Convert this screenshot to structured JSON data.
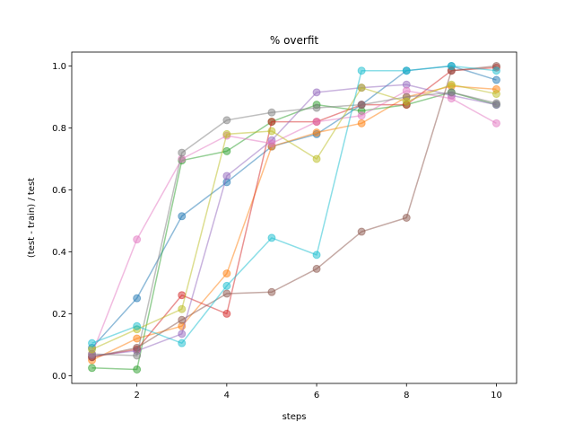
{
  "chart_data": {
    "type": "line",
    "title": "% overfit",
    "xlabel": "steps",
    "ylabel": "(test - train) / test",
    "xlim": [
      0.55,
      10.45
    ],
    "ylim": [
      -0.025,
      1.045
    ],
    "xticks": [
      2,
      4,
      6,
      8,
      10
    ],
    "yticks": [
      0.0,
      0.2,
      0.4,
      0.6,
      0.8,
      1.0
    ],
    "ytick_labels": [
      "0.0",
      "0.2",
      "0.4",
      "0.6",
      "0.8",
      "1.0"
    ],
    "grid": false,
    "legend": "none",
    "x": [
      1,
      2,
      3,
      4,
      5,
      6,
      7,
      8,
      9,
      10
    ],
    "series": [
      {
        "color": "#1f77b4",
        "values": [
          0.09,
          0.25,
          0.515,
          0.625,
          0.74,
          0.78,
          0.875,
          0.985,
          1.0,
          0.955
        ]
      },
      {
        "color": "#ff7f0e",
        "values": [
          0.05,
          0.12,
          0.16,
          0.33,
          0.74,
          0.785,
          0.815,
          0.9,
          0.935,
          0.925
        ]
      },
      {
        "color": "#2ca02c",
        "values": [
          0.025,
          0.02,
          0.695,
          0.725,
          0.82,
          0.875,
          0.855,
          0.875,
          0.915,
          0.875
        ]
      },
      {
        "color": "#d62728",
        "values": [
          0.06,
          0.085,
          0.26,
          0.2,
          0.82,
          0.82,
          0.875,
          0.875,
          0.985,
          0.995
        ]
      },
      {
        "color": "#9467bd",
        "values": [
          0.065,
          0.08,
          0.135,
          0.645,
          0.76,
          0.915,
          0.93,
          0.94,
          0.905,
          0.875
        ]
      },
      {
        "color": "#8c564b",
        "values": [
          0.06,
          0.09,
          0.18,
          0.265,
          0.27,
          0.345,
          0.465,
          0.51,
          0.985,
          1.0
        ]
      },
      {
        "color": "#e377c2",
        "values": [
          0.07,
          0.44,
          0.7,
          0.775,
          0.75,
          0.82,
          0.84,
          0.92,
          0.895,
          0.815
        ]
      },
      {
        "color": "#7f7f7f",
        "values": [
          0.07,
          0.065,
          0.72,
          0.825,
          0.85,
          0.865,
          0.875,
          0.9,
          0.915,
          0.88
        ]
      },
      {
        "color": "#bcbd22",
        "values": [
          0.085,
          0.15,
          0.215,
          0.78,
          0.79,
          0.7,
          0.93,
          0.885,
          0.94,
          0.91
        ]
      },
      {
        "color": "#17becf",
        "values": [
          0.105,
          0.16,
          0.105,
          0.29,
          0.445,
          0.39,
          0.985,
          0.985,
          1.0,
          0.985
        ]
      }
    ]
  }
}
